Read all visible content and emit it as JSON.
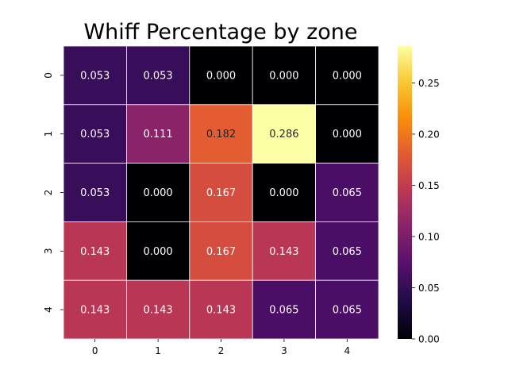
{
  "chart_data": {
    "type": "heatmap",
    "title": "Whiff Percentage by zone",
    "xlabel": "",
    "ylabel": "",
    "x_ticks": [
      "0",
      "1",
      "2",
      "3",
      "4"
    ],
    "y_ticks": [
      "0",
      "1",
      "2",
      "3",
      "4"
    ],
    "cell_labels": [
      [
        "0.053",
        "0.053",
        "0.000",
        "0.000",
        "0.000"
      ],
      [
        "0.053",
        "0.111",
        "0.182",
        "0.286",
        "0.000"
      ],
      [
        "0.053",
        "0.000",
        "0.167",
        "0.000",
        "0.065"
      ],
      [
        "0.143",
        "0.000",
        "0.167",
        "0.143",
        "0.065"
      ],
      [
        "0.143",
        "0.143",
        "0.143",
        "0.065",
        "0.065"
      ]
    ],
    "values": [
      [
        0.053,
        0.053,
        0.0,
        0.0,
        0.0
      ],
      [
        0.053,
        0.111,
        0.182,
        0.286,
        0.0
      ],
      [
        0.053,
        0.0,
        0.167,
        0.0,
        0.065
      ],
      [
        0.143,
        0.0,
        0.167,
        0.143,
        0.065
      ],
      [
        0.143,
        0.143,
        0.143,
        0.065,
        0.065
      ]
    ],
    "colormap": "inferno",
    "colorbar": {
      "range": [
        0.0,
        0.286
      ],
      "ticks": [
        0.0,
        0.05,
        0.1,
        0.15,
        0.2,
        0.25
      ],
      "tick_labels": [
        "0.00",
        "0.05",
        "0.10",
        "0.15",
        "0.20",
        "0.25"
      ]
    },
    "grid": false,
    "cell_border_color": "#ffffff"
  }
}
